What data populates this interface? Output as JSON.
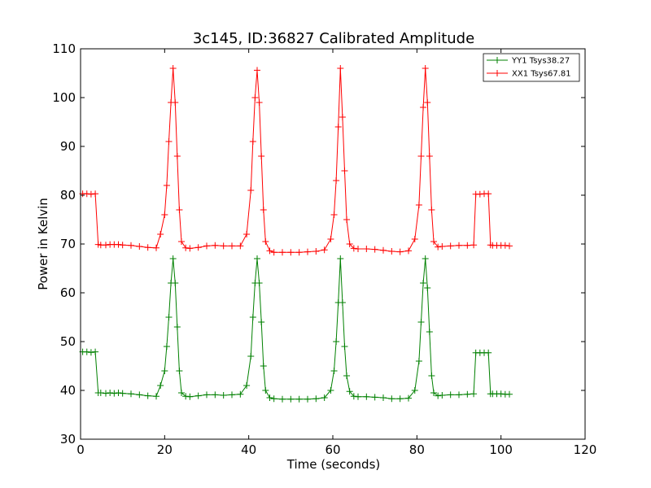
{
  "chart_data": {
    "type": "line",
    "title": "3c145, ID:36827 Calibrated Amplitude",
    "xlabel": "Time (seconds)",
    "ylabel": "Power in Kelvin",
    "xlim": [
      0,
      120
    ],
    "ylim": [
      30,
      110
    ],
    "xticks": [
      "0",
      "20",
      "40",
      "60",
      "80",
      "100",
      "120"
    ],
    "yticks": [
      "30",
      "40",
      "50",
      "60",
      "70",
      "80",
      "90",
      "100",
      "110"
    ],
    "grid": false,
    "legend_position": "top-right",
    "marker": "plus",
    "series": [
      {
        "name": "YY1 Tsys38.27",
        "color": "#008000",
        "x": [
          0.5,
          1.5,
          2.5,
          3.5,
          4.2,
          4.8,
          6,
          7,
          8,
          9,
          10,
          12,
          14,
          16,
          18,
          19,
          20,
          20.5,
          21,
          21.5,
          22,
          22.5,
          23,
          23.5,
          24,
          25,
          26,
          28,
          30,
          32,
          34,
          36,
          38,
          39.5,
          40.5,
          41,
          41.5,
          42,
          42.5,
          43,
          43.5,
          44,
          45,
          46,
          48,
          50,
          52,
          54,
          56,
          58,
          59.5,
          60.3,
          60.8,
          61.3,
          61.8,
          62.3,
          62.8,
          63.3,
          64,
          65,
          66,
          68,
          70,
          72,
          74,
          76,
          78,
          79.5,
          80.5,
          81,
          81.5,
          82,
          82.5,
          83,
          83.5,
          84,
          85,
          86,
          88,
          90,
          92,
          93.5,
          94,
          95,
          96,
          97,
          97.5,
          98,
          99,
          100,
          101,
          102
        ],
        "y": [
          47.9,
          47.9,
          47.8,
          47.9,
          39.5,
          39.5,
          39.4,
          39.5,
          39.4,
          39.5,
          39.4,
          39.3,
          39.1,
          38.9,
          38.8,
          41,
          44,
          49,
          55,
          62,
          67,
          62,
          53,
          44,
          39.5,
          38.8,
          38.7,
          38.9,
          39.1,
          39.1,
          39,
          39.1,
          39.2,
          41,
          47,
          55,
          62,
          67,
          62,
          54,
          45,
          40,
          38.5,
          38.3,
          38.2,
          38.2,
          38.2,
          38.2,
          38.3,
          38.5,
          40,
          44,
          50,
          58,
          67,
          58,
          49,
          43,
          39.8,
          38.8,
          38.7,
          38.7,
          38.6,
          38.5,
          38.3,
          38.3,
          38.4,
          40,
          46,
          54,
          62,
          67,
          61,
          52,
          43,
          39.5,
          38.9,
          39,
          39.1,
          39.1,
          39.2,
          39.3,
          47.7,
          47.7,
          47.7,
          47.7,
          39.3,
          39.3,
          39.3,
          39.3,
          39.2,
          39.2
        ]
      },
      {
        "name": "XX1 Tsys67.81",
        "color": "#ff0000",
        "x": [
          0.5,
          1.5,
          2.5,
          3.5,
          4.2,
          4.8,
          6,
          7,
          8,
          9,
          10,
          12,
          14,
          16,
          18,
          19,
          20,
          20.5,
          21,
          21.5,
          22,
          22.5,
          23,
          23.5,
          24,
          25,
          26,
          28,
          30,
          32,
          34,
          36,
          38,
          39.5,
          40.5,
          41,
          41.5,
          42,
          42.5,
          43,
          43.5,
          44,
          45,
          46,
          48,
          50,
          52,
          54,
          56,
          58,
          59.5,
          60.3,
          60.8,
          61.3,
          61.8,
          62.3,
          62.8,
          63.3,
          64,
          65,
          66,
          68,
          70,
          72,
          74,
          76,
          78,
          79.5,
          80.5,
          81,
          81.5,
          82,
          82.5,
          83,
          83.5,
          84,
          85,
          86,
          88,
          90,
          92,
          93.5,
          94,
          95,
          96,
          97,
          97.5,
          98,
          99,
          100,
          101,
          102
        ],
        "y": [
          80.3,
          80.3,
          80.2,
          80.3,
          69.9,
          69.8,
          69.8,
          69.9,
          69.9,
          69.9,
          69.8,
          69.7,
          69.5,
          69.3,
          69.2,
          72,
          76,
          82,
          91,
          99,
          106,
          99,
          88,
          77,
          70.5,
          69.2,
          69.1,
          69.3,
          69.6,
          69.7,
          69.6,
          69.6,
          69.6,
          72,
          81,
          91,
          100,
          105.6,
          99,
          88,
          77,
          70.5,
          68.6,
          68.3,
          68.3,
          68.3,
          68.3,
          68.4,
          68.5,
          68.8,
          71,
          76,
          83,
          94,
          106,
          96,
          85,
          75,
          70,
          69.1,
          69,
          69,
          68.9,
          68.7,
          68.5,
          68.4,
          68.6,
          71,
          78,
          88,
          98,
          106,
          99,
          88,
          77,
          70.5,
          69.4,
          69.5,
          69.6,
          69.7,
          69.7,
          69.8,
          80.2,
          80.2,
          80.3,
          80.3,
          69.8,
          69.7,
          69.7,
          69.7,
          69.7,
          69.6
        ]
      }
    ]
  }
}
